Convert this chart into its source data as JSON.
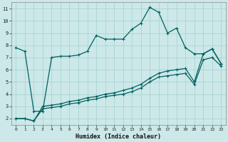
{
  "xlabel": "Humidex (Indice chaleur)",
  "bg_color": "#cce8e8",
  "grid_color": "#aad4d4",
  "line_color": "#006060",
  "xlim": [
    -0.5,
    23.5
  ],
  "ylim": [
    1.5,
    11.5
  ],
  "xticks": [
    0,
    1,
    2,
    3,
    4,
    5,
    6,
    7,
    8,
    9,
    10,
    11,
    12,
    13,
    14,
    15,
    16,
    17,
    18,
    19,
    20,
    21,
    22,
    23
  ],
  "yticks": [
    2,
    3,
    4,
    5,
    6,
    7,
    8,
    9,
    10,
    11
  ],
  "line1_x": [
    0,
    1,
    2,
    3,
    4,
    5,
    6,
    7,
    8,
    9,
    10,
    11,
    12,
    13,
    14,
    15,
    16,
    17,
    18,
    19,
    20,
    21,
    22,
    23
  ],
  "line1_y": [
    7.8,
    7.5,
    2.6,
    2.6,
    7.0,
    7.1,
    7.1,
    7.2,
    7.5,
    8.8,
    8.5,
    8.5,
    8.5,
    9.3,
    9.8,
    11.1,
    10.7,
    9.0,
    9.4,
    7.8,
    7.3,
    7.3,
    7.7,
    6.5
  ],
  "line2_x": [
    0,
    1,
    2,
    3,
    4,
    5,
    6,
    7,
    8,
    9,
    10,
    11,
    12,
    13,
    14,
    15,
    16,
    17,
    18,
    19,
    20,
    21,
    22,
    23
  ],
  "line2_y": [
    2.0,
    2.0,
    1.8,
    3.0,
    3.1,
    3.2,
    3.4,
    3.5,
    3.7,
    3.8,
    4.0,
    4.1,
    4.3,
    4.5,
    4.8,
    5.3,
    5.7,
    5.9,
    6.0,
    6.1,
    5.0,
    7.3,
    7.7,
    6.5
  ],
  "line3_x": [
    0,
    1,
    2,
    3,
    4,
    5,
    6,
    7,
    8,
    9,
    10,
    11,
    12,
    13,
    14,
    15,
    16,
    17,
    18,
    19,
    20,
    21,
    22,
    23
  ],
  "line3_y": [
    2.0,
    2.0,
    1.8,
    2.8,
    2.9,
    3.0,
    3.2,
    3.3,
    3.5,
    3.6,
    3.8,
    3.9,
    4.0,
    4.2,
    4.5,
    5.0,
    5.4,
    5.5,
    5.6,
    5.7,
    4.8,
    6.8,
    7.0,
    6.3
  ]
}
